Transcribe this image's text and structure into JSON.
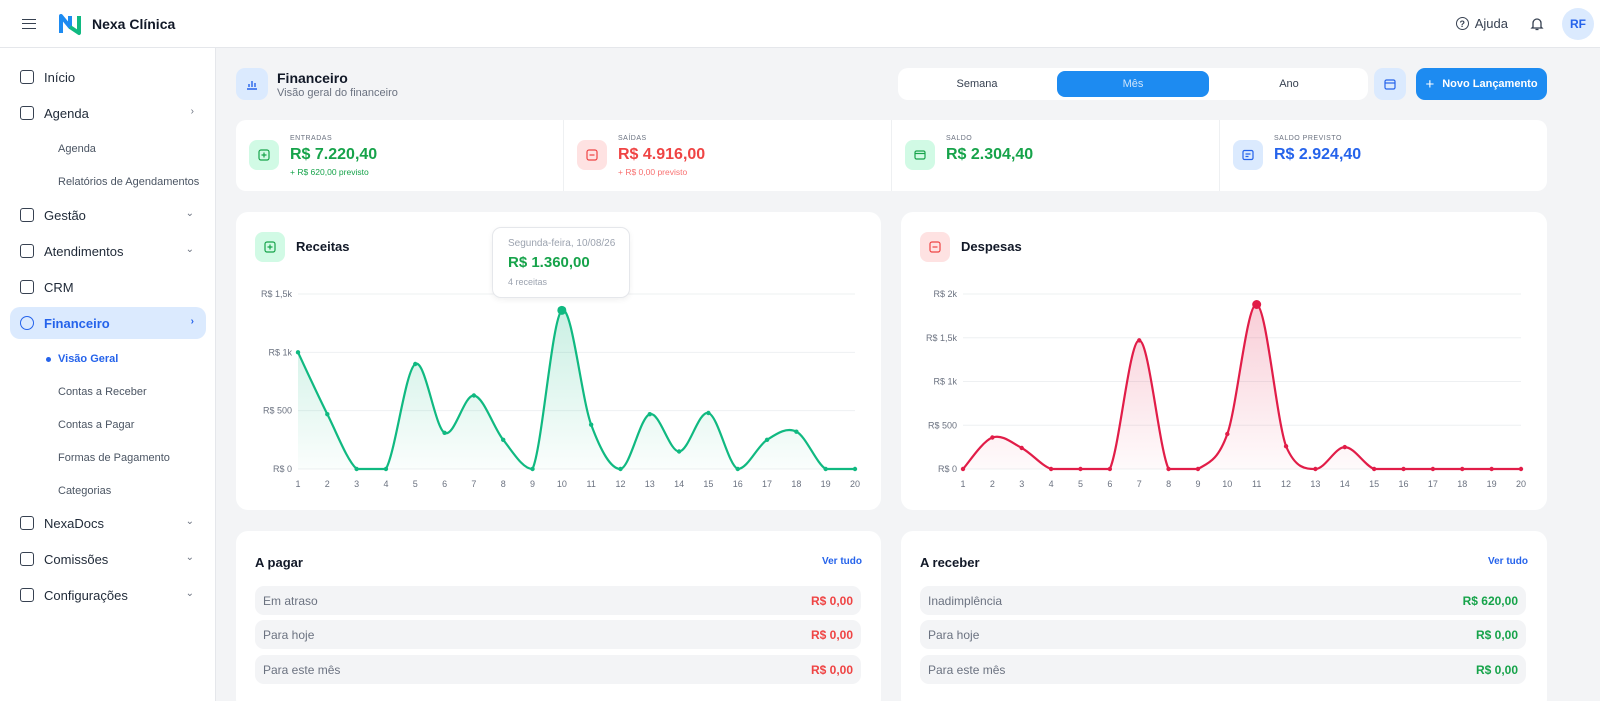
{
  "header": {
    "brand": "Nexa Clínica",
    "help_label": "Ajuda",
    "avatar_initials": "RF"
  },
  "sidebar": {
    "items": [
      {
        "label": "Início",
        "icon": "home-icon"
      },
      {
        "label": "Agenda",
        "icon": "calendar-icon"
      },
      {
        "label": "Gestão",
        "icon": "users-icon"
      },
      {
        "label": "Atendimentos",
        "icon": "stethoscope-icon"
      },
      {
        "label": "CRM",
        "icon": "kanban-icon"
      },
      {
        "label": "Financeiro",
        "icon": "dollar-icon"
      },
      {
        "label": "NexaDocs",
        "icon": "edit-doc-icon"
      },
      {
        "label": "Comissões",
        "icon": "percent-icon"
      },
      {
        "label": "Configurações",
        "icon": "gear-icon"
      }
    ],
    "agenda_sub": [
      "Agenda",
      "Relatórios de Agendamentos"
    ],
    "financeiro_sub": [
      "Visão Geral",
      "Contas a Receber",
      "Contas a Pagar",
      "Formas de Pagamento",
      "Categorias"
    ]
  },
  "page": {
    "title": "Financeiro",
    "subtitle": "Visão geral do financeiro"
  },
  "period_tabs": [
    "Semana",
    "Mês",
    "Ano"
  ],
  "selected_period": "Mês",
  "new_button": "Novo Lançamento",
  "summary": [
    {
      "label": "ENTRADAS",
      "value": "R$ 7.220,40",
      "forecast": "+ R$ 620,00 previsto",
      "color": "#16a34a"
    },
    {
      "label": "SAÍDAS",
      "value": "R$ 4.916,00",
      "forecast": "+ R$ 0,00 previsto",
      "color": "#ef4444"
    },
    {
      "label": "SALDO",
      "value": "R$ 2.304,40",
      "forecast": "",
      "color": "#16a34a"
    },
    {
      "label": "SALDO PREVISTO",
      "value": "R$ 2.924,40",
      "forecast": "",
      "color": "#2563eb"
    }
  ],
  "receitas": {
    "title": "Receitas"
  },
  "despesas": {
    "title": "Despesas"
  },
  "tooltip": {
    "date": "Segunda-feira, 10/08/26",
    "value": "R$ 1.360,00",
    "count": "4 receitas"
  },
  "chart_data": [
    {
      "type": "area",
      "title": "Receitas",
      "x": [
        1,
        2,
        3,
        4,
        5,
        6,
        7,
        8,
        9,
        10,
        11,
        12,
        13,
        14,
        15,
        16,
        17,
        18,
        19,
        20
      ],
      "series": [
        {
          "values": [
            1000,
            470,
            0,
            0,
            900,
            310,
            630,
            250,
            0,
            1360,
            380,
            0,
            470,
            150,
            480,
            0,
            250,
            320,
            0,
            0
          ]
        }
      ],
      "ylim": [
        0,
        1500
      ],
      "yticks": [
        "R$ 0",
        "R$ 500",
        "R$ 1k",
        "R$ 1,5k"
      ],
      "color": "#10b981"
    },
    {
      "type": "area",
      "title": "Despesas",
      "x": [
        1,
        2,
        3,
        4,
        5,
        6,
        7,
        8,
        9,
        10,
        11,
        12,
        13,
        14,
        15,
        16,
        17,
        18,
        19,
        20
      ],
      "series": [
        {
          "values": [
            0,
            360,
            240,
            0,
            0,
            0,
            1470,
            0,
            0,
            400,
            1880,
            260,
            0,
            250,
            0,
            0,
            0,
            0,
            0,
            0
          ]
        }
      ],
      "ylim": [
        0,
        2000
      ],
      "yticks": [
        "R$ 0",
        "R$ 500",
        "R$ 1k",
        "R$ 1,5k",
        "R$ 2k"
      ],
      "color": "#e11d48"
    }
  ],
  "a_pagar": {
    "title": "A pagar",
    "link": "Ver tudo",
    "rows": [
      {
        "label": "Em atraso",
        "value": "R$ 0,00"
      },
      {
        "label": "Para hoje",
        "value": "R$ 0,00"
      },
      {
        "label": "Para este mês",
        "value": "R$ 0,00"
      }
    ]
  },
  "a_receber": {
    "title": "A receber",
    "link": "Ver tudo",
    "rows": [
      {
        "label": "Inadimplência",
        "value": "R$ 620,00"
      },
      {
        "label": "Para hoje",
        "value": "R$ 0,00"
      },
      {
        "label": "Para este mês",
        "value": "R$ 0,00"
      }
    ]
  }
}
